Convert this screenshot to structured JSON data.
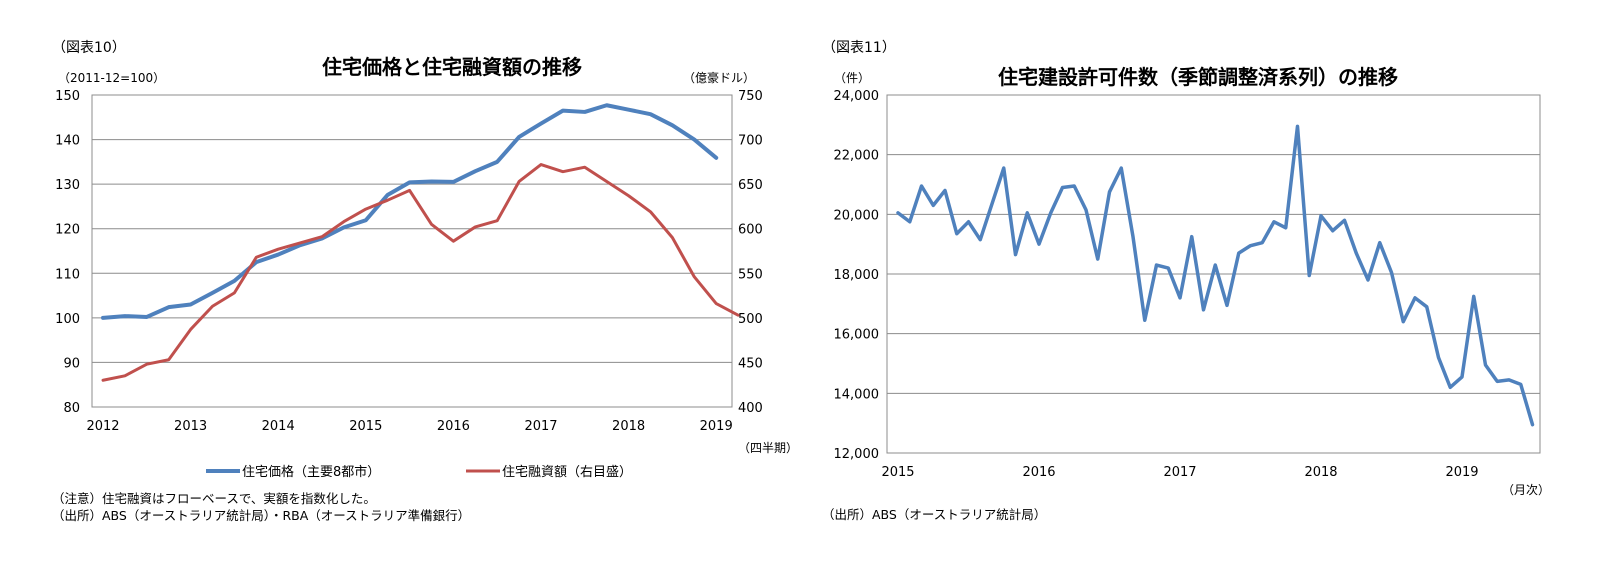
{
  "chart_data": [
    {
      "type": "line",
      "figure_label": "（図表10）",
      "title": "住宅価格と住宅融資額の推移",
      "left_unit": "（2011-12=100）",
      "right_unit": "（億豪ドル）",
      "x_unit": "（四半期）",
      "left_ylim": [
        80,
        150
      ],
      "right_ylim": [
        400,
        750
      ],
      "left_ticks": [
        "80",
        "90",
        "100",
        "110",
        "120",
        "130",
        "140",
        "150"
      ],
      "right_ticks": [
        "400",
        "450",
        "500",
        "550",
        "600",
        "650",
        "700",
        "750"
      ],
      "x_ticks": [
        "2012",
        "2013",
        "2014",
        "2015",
        "2016",
        "2017",
        "2018",
        "2019"
      ],
      "x_tick_pos": [
        0,
        4,
        8,
        12,
        16,
        20,
        24,
        28
      ],
      "grid": true,
      "legend_position": "bottom",
      "series": [
        {
          "name": "住宅価格（主要8都市）",
          "axis": "left",
          "color": "#4f81bd",
          "values": [
            100.0,
            100.4,
            100.2,
            102.4,
            103.0,
            105.6,
            108.3,
            112.5,
            114.2,
            116.3,
            117.8,
            120.3,
            121.9,
            127.6,
            130.4,
            130.6,
            130.5,
            132.9,
            135.0,
            140.6,
            143.6,
            146.5,
            146.2,
            147.7,
            146.7,
            145.7,
            143.2,
            140.0,
            135.9
          ]
        },
        {
          "name": "住宅融資額（右目盛）",
          "axis": "right",
          "color": "#c0504d",
          "values": [
            430,
            435,
            448,
            453,
            487,
            513,
            528,
            568,
            577,
            584,
            591,
            608,
            622,
            632,
            643,
            605,
            586,
            602,
            609,
            653,
            672,
            664,
            669,
            653,
            637,
            619,
            590,
            546,
            516,
            503
          ]
        }
      ],
      "notes": [
        "（注意）住宅融資はフローベースで、実額を指数化した。",
        "（出所）ABS（オーストラリア統計局）・RBA（オーストラリア準備銀行）"
      ]
    },
    {
      "type": "line",
      "figure_label": "（図表11）",
      "title": "住宅建設許可件数（季節調整済系列）の推移",
      "y_unit": "（件）",
      "x_unit": "（月次）",
      "ylim": [
        12000,
        24000
      ],
      "y_ticks": [
        "12,000",
        "14,000",
        "16,000",
        "18,000",
        "20,000",
        "22,000",
        "24,000"
      ],
      "x_ticks": [
        "2015",
        "2016",
        "2017",
        "2018",
        "2019"
      ],
      "x_tick_pos": [
        0,
        12,
        24,
        36,
        48
      ],
      "grid": true,
      "series": [
        {
          "color": "#4f81bd",
          "values": [
            20050,
            19750,
            20950,
            20300,
            20800,
            19350,
            19750,
            19150,
            20350,
            21550,
            18650,
            20050,
            19000,
            20050,
            20900,
            20950,
            20150,
            18500,
            20750,
            21550,
            19250,
            16450,
            18300,
            18200,
            17200,
            19250,
            16800,
            18300,
            16950,
            18700,
            18950,
            19050,
            19750,
            19550,
            22950,
            17950,
            19950,
            19450,
            19800,
            18700,
            17800,
            19050,
            18050,
            16400,
            17200,
            16900,
            15200,
            14200,
            14550,
            17250,
            14950,
            14400,
            14450,
            14300,
            12950
          ]
        }
      ],
      "notes": [
        "（出所）ABS（オーストラリア統計局）"
      ]
    }
  ]
}
